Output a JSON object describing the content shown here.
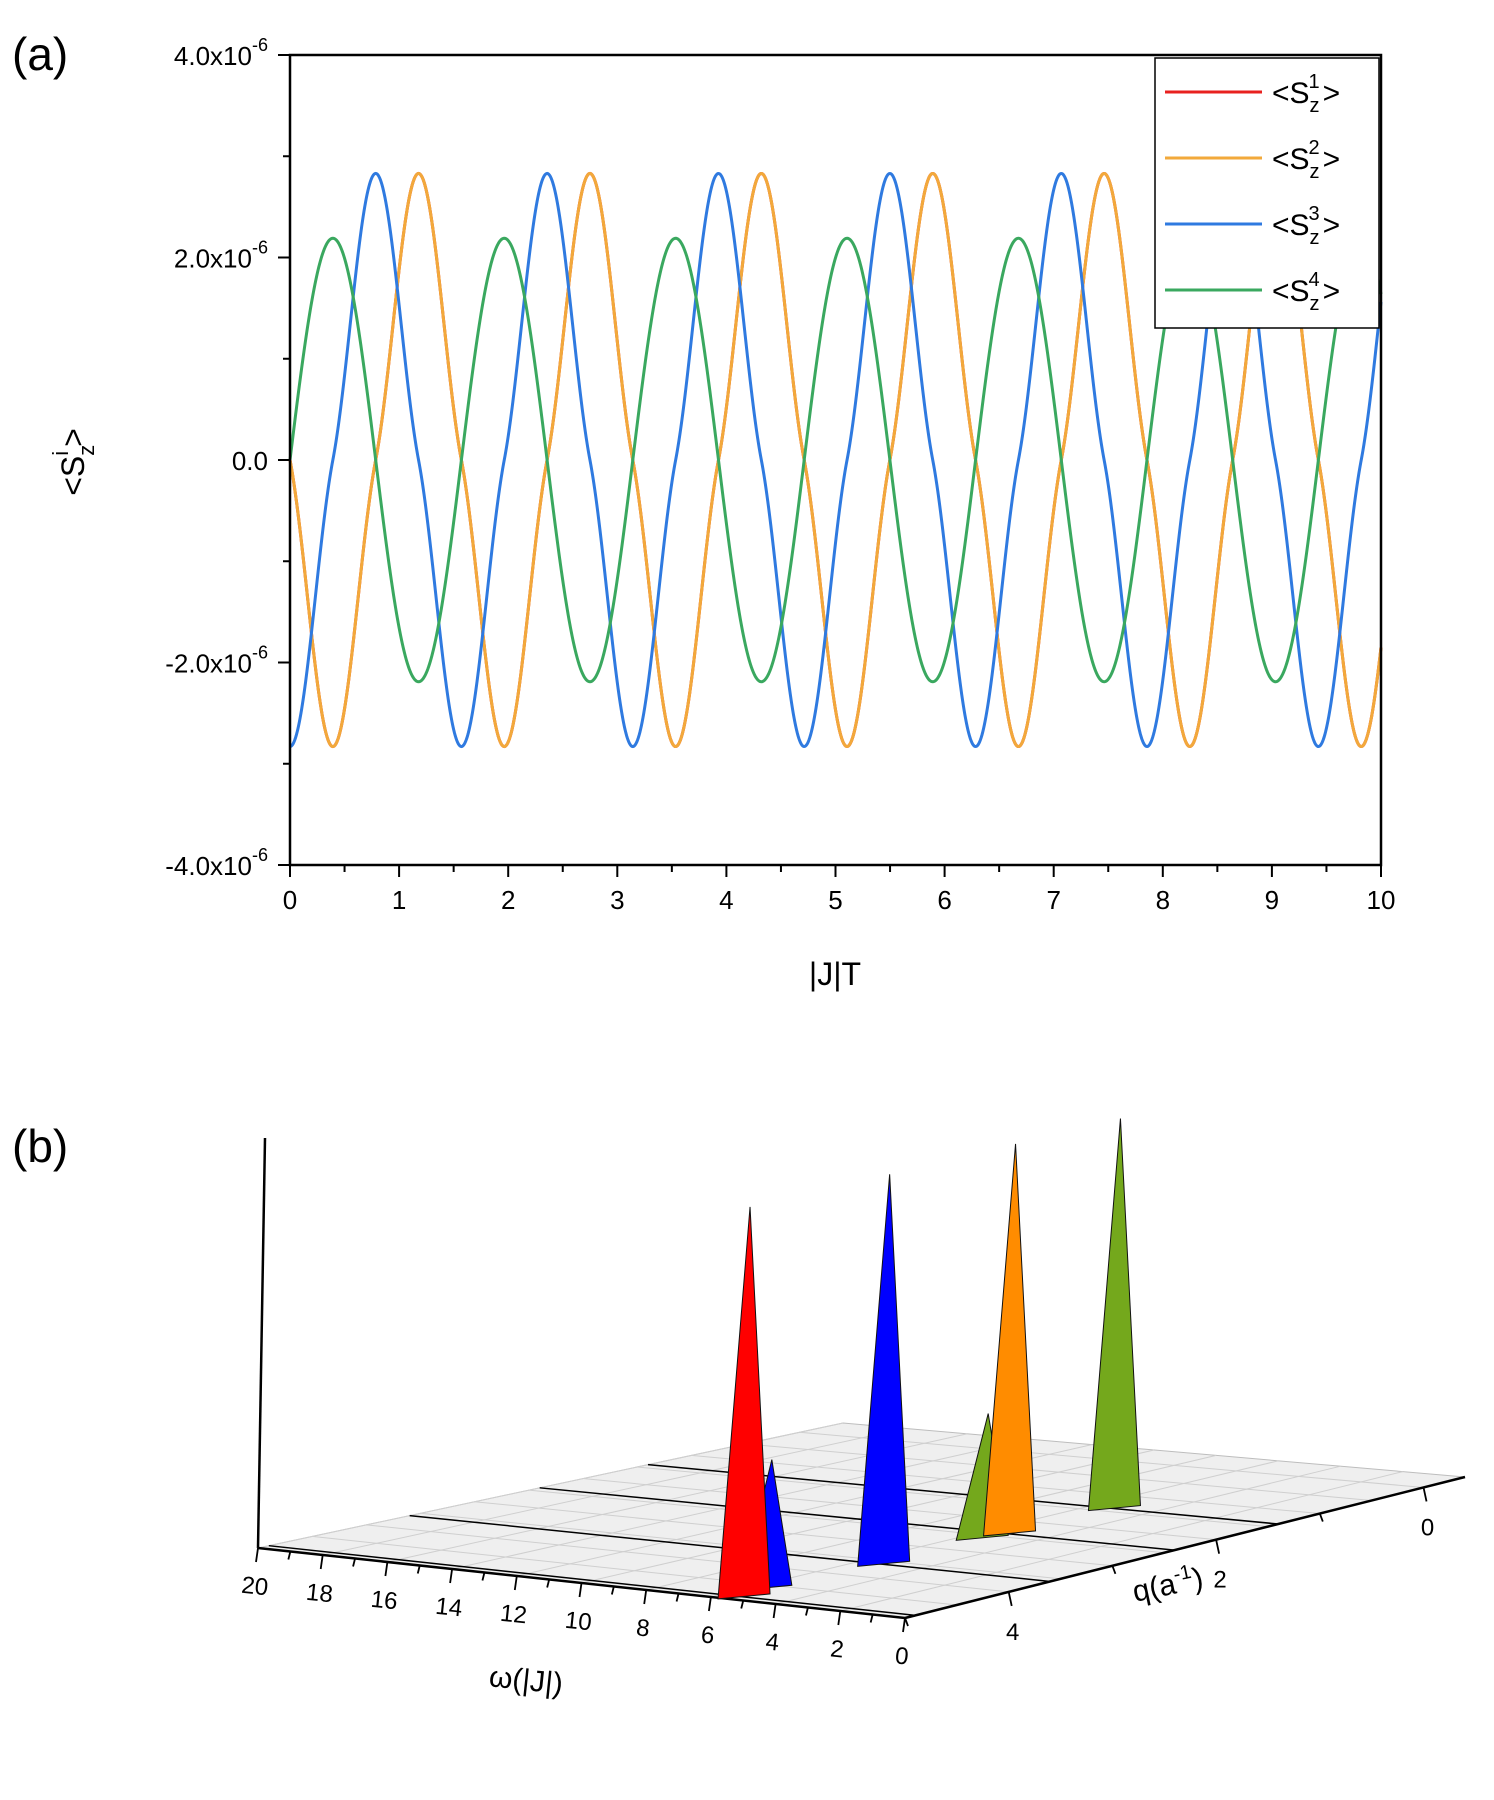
{
  "chart_data": [
    {
      "panel_label": "(a)",
      "type": "line",
      "xlabel": "|J|T",
      "ylabel": "<S_z^i>",
      "xlim": [
        0,
        10
      ],
      "ylim": [
        -4e-06,
        4e-06
      ],
      "x_ticks": [
        0,
        1,
        2,
        3,
        4,
        5,
        6,
        7,
        8,
        9,
        10
      ],
      "x_tick_labels": [
        "0",
        "1",
        "2",
        "3",
        "4",
        "5",
        "6",
        "7",
        "8",
        "9",
        "10"
      ],
      "y_ticks": [
        -4e-06,
        -2e-06,
        0,
        2e-06,
        4e-06
      ],
      "y_tick_labels": [
        {
          "mantissa": "-4.0x10",
          "exponent": "-6"
        },
        {
          "mantissa": "-2.0x10",
          "exponent": "-6"
        },
        {
          "mantissa": "0.0",
          "exponent": ""
        },
        {
          "mantissa": "2.0x10",
          "exponent": "-6"
        },
        {
          "mantissa": "4.0x10",
          "exponent": "-6"
        }
      ],
      "legend_position": "top-right",
      "grid": false,
      "series": [
        {
          "name": "<S_z^1>",
          "legend_base": "<S",
          "legend_sub": "z",
          "legend_sup": "1",
          "legend_close": ">",
          "color": "#e8211f",
          "amplitude": 2.83e-06,
          "period": 1.571,
          "phase": 0,
          "shape": "sin3",
          "sign": -1
        },
        {
          "name": "<S_z^2>",
          "legend_base": "<S",
          "legend_sub": "z",
          "legend_sup": "2",
          "legend_close": ">",
          "color": "#f2a93b",
          "amplitude": 2.83e-06,
          "period": 1.571,
          "phase": 0,
          "shape": "sin3",
          "sign": -1
        },
        {
          "name": "<S_z^3>",
          "legend_base": "<S",
          "legend_sub": "z",
          "legend_sup": "3",
          "legend_close": ">",
          "color": "#2f7ae0",
          "amplitude": 2.83e-06,
          "period": 1.571,
          "phase": 0,
          "shape": "sin3shift",
          "sign": 1
        },
        {
          "name": "<S_z^4>",
          "legend_base": "<S",
          "legend_sub": "z",
          "legend_sup": "4",
          "legend_close": ">",
          "color": "#3aa85f",
          "amplitude": 2.19e-06,
          "period": 1.571,
          "phase": 0,
          "shape": "sin",
          "sign": 1
        }
      ]
    },
    {
      "panel_label": "(b)",
      "type": "3d-waterfall",
      "xlabel": "ω(|J|)",
      "ylabel": "q(a",
      "ylabel_sup": "-1",
      "ylabel_close": ")",
      "omega_ticks": [
        "20",
        "18",
        "16",
        "14",
        "12",
        "10",
        "8",
        "6",
        "4",
        "2",
        "0"
      ],
      "q_ticks": [
        "0",
        "2",
        "4"
      ],
      "peaks": [
        {
          "color": "#0000ff",
          "omega": 5.6,
          "q": 4.6,
          "height": 0.33
        },
        {
          "color": "#ff0000",
          "omega": 5.3,
          "q": 4.9,
          "height": 1.0
        },
        {
          "color": "#0000ff",
          "omega": 5.2,
          "q": 3.6,
          "height": 1.0
        },
        {
          "color": "#74a81c",
          "omega": 5.4,
          "q": 2.6,
          "height": 0.32
        },
        {
          "color": "#ff8c00",
          "omega": 5.2,
          "q": 2.4,
          "height": 1.0
        },
        {
          "color": "#74a81c",
          "omega": 5.2,
          "q": 1.4,
          "height": 1.0
        }
      ]
    }
  ]
}
